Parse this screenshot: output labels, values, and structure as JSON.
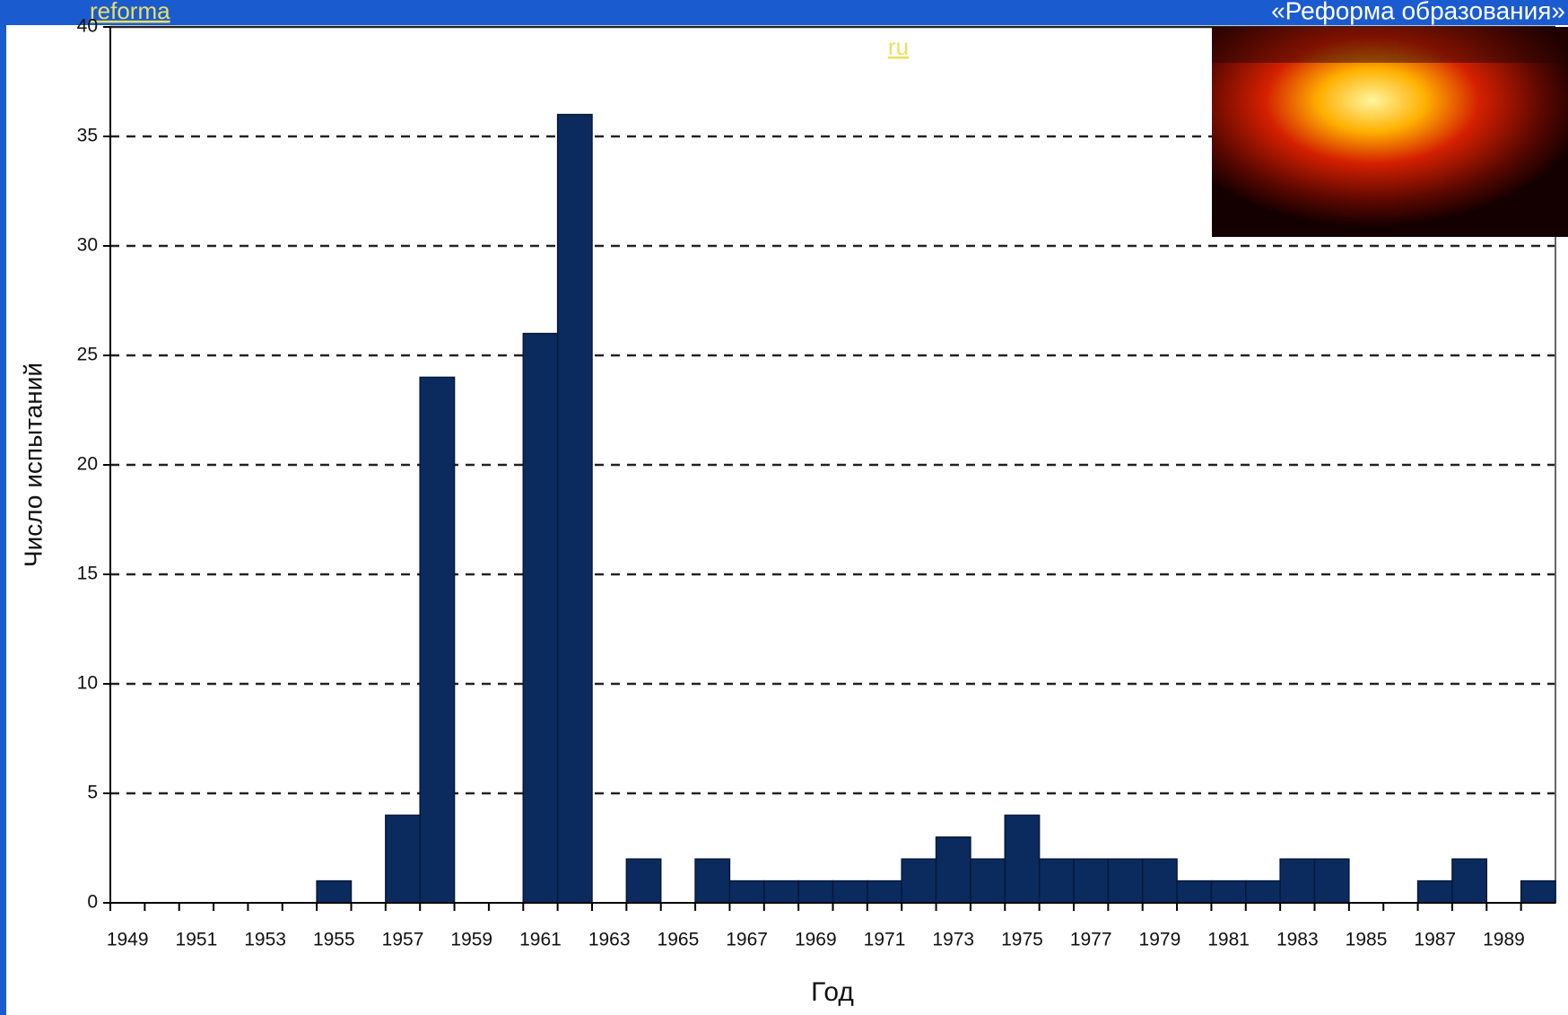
{
  "chart_data": {
    "type": "bar",
    "title": null,
    "x_label": "Год",
    "y_label": "Число испытаний",
    "categories": [
      "1949",
      null,
      "1951",
      null,
      "1953",
      null,
      "1955",
      null,
      "1957",
      null,
      "1959",
      null,
      "1961",
      null,
      "1963",
      null,
      "1965",
      null,
      "1967",
      null,
      "1969",
      null,
      "1971",
      null,
      "1973",
      null,
      "1975",
      null,
      "1977",
      null,
      "1979",
      null,
      "1981",
      null,
      "1983",
      null,
      "1985",
      null,
      "1987",
      null,
      "1989",
      null
    ],
    "values": [
      0,
      0,
      0,
      0,
      0,
      0,
      1,
      0,
      4,
      24,
      0,
      0,
      26,
      36,
      0,
      2,
      0,
      2,
      1,
      1,
      1,
      1,
      1,
      2,
      3,
      2,
      4,
      2,
      2,
      2,
      2,
      1,
      1,
      1,
      2,
      2,
      0,
      0,
      1,
      2,
      0,
      1
    ],
    "color": "#0b2b5e",
    "ylim": [
      0,
      40
    ],
    "yticks": [
      0,
      5,
      10,
      15,
      20,
      25,
      30,
      35,
      40
    ],
    "grid": true
  },
  "overlay": {
    "caption": "«Реформа образования»",
    "links": [
      "reforma",
      "ru"
    ]
  }
}
